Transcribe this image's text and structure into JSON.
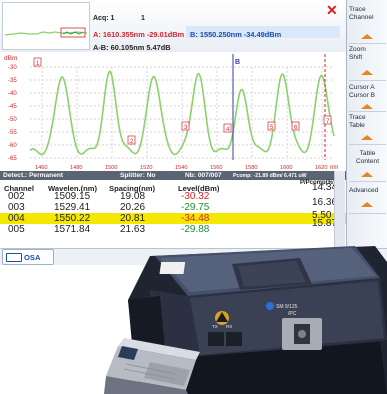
{
  "header": {
    "acq_label": "Acq: 1",
    "acq_value": "1",
    "cursor_a": "A: 1610.355nm -29.01dBm",
    "cursor_b": "B: 1550.250nm -34.49dBm",
    "delta": "A-B: 60.105nm 5.47dB"
  },
  "graph": {
    "y_unit": "dBm",
    "x_unit": "nm",
    "y_ticks": [
      "-30",
      "-35",
      "-40",
      "-45",
      "-50",
      "-55",
      "-60",
      "-65"
    ],
    "x_ticks": [
      "1460",
      "1480",
      "1500",
      "1520",
      "1540",
      "1560",
      "1580",
      "1600",
      "1620"
    ],
    "marker_a": "A",
    "marker_b": "B",
    "markers": [
      "1",
      "2",
      "3",
      "4",
      "5",
      "6",
      "7"
    ],
    "colors": {
      "trace": "#8ad26a",
      "cursor_a": "#d3262b",
      "cursor_b": "#3a3aa8",
      "grid": "#d6d6d6"
    }
  },
  "table": {
    "detect_label": "Detect.: Permanent",
    "splitter_label": "Splitter: No",
    "nb_label": "Nb: 007/007",
    "pcomp_label": "Pcomp: -21.89 dBm/ 6.471 uW",
    "ppcomp_header": "P/Pcomp(%)",
    "headers": [
      "Channel",
      "Wavelen.(nm)",
      "Spacing(nm)",
      "Level(dBm)"
    ],
    "rows": [
      {
        "channel": "002",
        "wavelength": "1509.15",
        "spacing": "19.08",
        "level": "-30.32",
        "ppcomp": "14.34",
        "level_color": "red"
      },
      {
        "channel": "003",
        "wavelength": "1529.41",
        "spacing": "20.26",
        "level": "-29.75",
        "ppcomp": "16.36",
        "level_color": "green"
      },
      {
        "channel": "004",
        "wavelength": "1550.22",
        "spacing": "20.81",
        "level": "-34.48",
        "ppcomp": "5.50",
        "level_color": "red",
        "highlight": true
      },
      {
        "channel": "005",
        "wavelength": "1571.84",
        "spacing": "21.63",
        "level": "-29.88",
        "ppcomp": "15.87",
        "level_color": "green"
      }
    ]
  },
  "sidebar": {
    "trace_channel": [
      "Trace",
      "Channel"
    ],
    "zoom_shift": [
      "Zoom",
      "Shift"
    ],
    "cursor": [
      "Cursor A",
      "Cursor B"
    ],
    "trace_table": [
      "Trace",
      "Table"
    ],
    "table_content": [
      "Table",
      "Content"
    ],
    "advanced": "Advanced"
  },
  "bottom": {
    "tab_label": "OSA"
  },
  "hardware": {
    "port_label": "SM 9/125",
    "port_sub": "/PC",
    "tx_label": "TX",
    "rx_label": "RX"
  }
}
